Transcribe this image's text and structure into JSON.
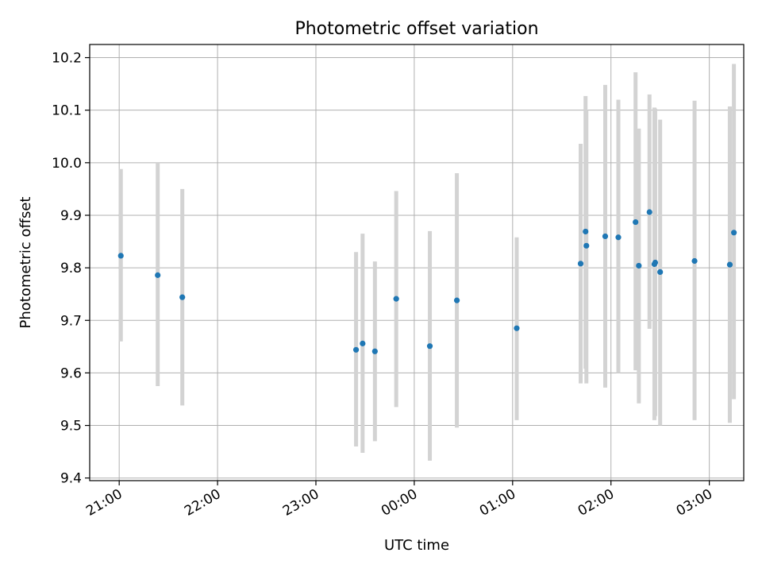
{
  "chart_data": {
    "type": "scatter",
    "title": "Photometric offset variation",
    "xlabel": "UTC time",
    "ylabel": "Photometric offset",
    "grid": true,
    "x_ticks": [
      {
        "t": 0,
        "label": "21:00"
      },
      {
        "t": 60,
        "label": "22:00"
      },
      {
        "t": 120,
        "label": "23:00"
      },
      {
        "t": 180,
        "label": "00:00"
      },
      {
        "t": 240,
        "label": "01:00"
      },
      {
        "t": 300,
        "label": "02:00"
      },
      {
        "t": 360,
        "label": "03:00"
      }
    ],
    "xlim": [
      -18,
      381
    ],
    "ylim": [
      9.395,
      10.225
    ],
    "y_ticks": [
      9.4,
      9.5,
      9.6,
      9.7,
      9.8,
      9.9,
      10.0,
      10.1,
      10.2
    ],
    "y_tick_labels": [
      "9.4",
      "9.5",
      "9.6",
      "9.7",
      "9.8",
      "9.9",
      "10.0",
      "10.1",
      "10.2"
    ],
    "series": [
      {
        "color": "#1f77b4",
        "error_color": "#d3d3d3",
        "points": [
          {
            "t": 1,
            "y": 9.823,
            "lo": 9.66,
            "hi": 9.988
          },
          {
            "t": 23.5,
            "y": 9.786,
            "lo": 9.575,
            "hi": 10.0
          },
          {
            "t": 38.5,
            "y": 9.744,
            "lo": 9.538,
            "hi": 9.95
          },
          {
            "t": 144.5,
            "y": 9.644,
            "lo": 9.46,
            "hi": 9.83
          },
          {
            "t": 148.5,
            "y": 9.656,
            "lo": 9.448,
            "hi": 9.865
          },
          {
            "t": 156,
            "y": 9.641,
            "lo": 9.47,
            "hi": 9.812
          },
          {
            "t": 169,
            "y": 9.741,
            "lo": 9.535,
            "hi": 9.946
          },
          {
            "t": 189.5,
            "y": 9.651,
            "lo": 9.433,
            "hi": 9.87
          },
          {
            "t": 206,
            "y": 9.738,
            "lo": 9.496,
            "hi": 9.98
          },
          {
            "t": 242.5,
            "y": 9.685,
            "lo": 9.51,
            "hi": 9.858
          },
          {
            "t": 281.5,
            "y": 9.808,
            "lo": 9.58,
            "hi": 10.036
          },
          {
            "t": 284.5,
            "y": 9.869,
            "lo": 9.608,
            "hi": 10.127
          },
          {
            "t": 285,
            "y": 9.842,
            "lo": 9.58,
            "hi": 10.1
          },
          {
            "t": 296.5,
            "y": 9.86,
            "lo": 9.572,
            "hi": 10.148
          },
          {
            "t": 304.5,
            "y": 9.858,
            "lo": 9.6,
            "hi": 10.12
          },
          {
            "t": 315,
            "y": 9.887,
            "lo": 9.605,
            "hi": 10.172
          },
          {
            "t": 317,
            "y": 9.804,
            "lo": 9.542,
            "hi": 10.065
          },
          {
            "t": 323.5,
            "y": 9.906,
            "lo": 9.684,
            "hi": 10.13
          },
          {
            "t": 326.5,
            "y": 9.807,
            "lo": 9.51,
            "hi": 10.105
          },
          {
            "t": 327,
            "y": 9.81,
            "lo": 9.518,
            "hi": 10.103
          },
          {
            "t": 330,
            "y": 9.792,
            "lo": 9.5,
            "hi": 10.082
          },
          {
            "t": 351,
            "y": 9.813,
            "lo": 9.51,
            "hi": 10.118
          },
          {
            "t": 372.5,
            "y": 9.806,
            "lo": 9.505,
            "hi": 10.107
          },
          {
            "t": 375,
            "y": 9.867,
            "lo": 9.55,
            "hi": 10.188
          }
        ]
      }
    ]
  }
}
